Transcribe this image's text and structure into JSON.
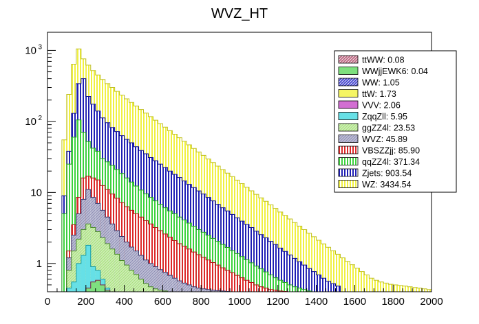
{
  "chart_data": {
    "type": "stacked-histogram",
    "title": "WVZ_HT",
    "xlabel": "",
    "ylabel": "",
    "xlim": [
      0,
      2000
    ],
    "y_scale": "log",
    "ylim": [
      0.4,
      1800
    ],
    "bin_width": 25,
    "x_ticks": [
      {
        "value": 0,
        "label": "0"
      },
      {
        "value": 200,
        "label": "200"
      },
      {
        "value": 400,
        "label": "400"
      },
      {
        "value": 600,
        "label": "600"
      },
      {
        "value": 800,
        "label": "800"
      },
      {
        "value": 1000,
        "label": "1000"
      },
      {
        "value": 1200,
        "label": "1200"
      },
      {
        "value": 1400,
        "label": "1400"
      },
      {
        "value": 1600,
        "label": "1600"
      },
      {
        "value": 1800,
        "label": "1800"
      },
      {
        "value": 2000,
        "label": "2000"
      }
    ],
    "y_ticks": [
      {
        "value": 1,
        "label": "1"
      },
      {
        "value": 10,
        "label": "10"
      },
      {
        "value": 100,
        "label": "10",
        "exp": "2"
      },
      {
        "value": 1000,
        "label": "10",
        "exp": "3"
      }
    ],
    "legend": {
      "placement": "top-right",
      "entries": [
        {
          "label": "ttWW: 0.08",
          "fill": "#b4506e",
          "pattern": "diag-dense"
        },
        {
          "label": "WWjjEWK6: 0.04",
          "fill": "#7ee07e",
          "pattern": "solid"
        },
        {
          "label": "WW: 1.05",
          "fill": "#2c2cc8",
          "pattern": "diag-dense"
        },
        {
          "label": "ttW: 1.73",
          "fill": "#f5f564",
          "pattern": "solid"
        },
        {
          "label": "VVV: 2.06",
          "fill": "#d26ed2",
          "pattern": "solid"
        },
        {
          "label": "ZqqZll: 5.95",
          "fill": "#66e0e6",
          "pattern": "solid"
        },
        {
          "label": "ggZZ4l: 23.53",
          "fill": "#a6e07a",
          "pattern": "diag"
        },
        {
          "label": "WVZ: 45.89",
          "fill": "#8c8cb4",
          "pattern": "diag"
        },
        {
          "label": "VBSZZjj: 85.90",
          "fill": "#dc2828",
          "pattern": "vertical"
        },
        {
          "label": "qqZZ4l: 371.34",
          "fill": "#3cd23c",
          "pattern": "vertical"
        },
        {
          "label": "Zjets: 903.54",
          "fill": "#1e1eb4",
          "pattern": "vertical"
        },
        {
          "label": "WZ: 3434.54",
          "fill": "#f0f040",
          "pattern": "vertical"
        }
      ]
    },
    "stack_totals": [
      {
        "process": "ttWW + WWjjEWK6 + WW + ttW + VVV",
        "x": [
          200,
          225,
          250,
          275,
          300
        ],
        "values": [
          0.45,
          0.55,
          0.58,
          0.5,
          0.42
        ]
      },
      {
        "process": "through ZqqZll",
        "x": [
          100,
          125,
          150,
          175,
          200,
          225,
          250,
          275,
          300
        ],
        "values": [
          0.45,
          0.55,
          1.0,
          1.3,
          1.8,
          0.9,
          0.8,
          0.6,
          0.45
        ]
      },
      {
        "process": "through ggZZ4l",
        "x": [
          100,
          125,
          150,
          175,
          200,
          225,
          250,
          275,
          300,
          325,
          350,
          375,
          400,
          425,
          450,
          475,
          500,
          525,
          550,
          575,
          600,
          625
        ],
        "values": [
          0.8,
          1.5,
          2.2,
          3.0,
          3.6,
          3.2,
          2.8,
          2.3,
          1.9,
          1.6,
          1.35,
          1.1,
          0.95,
          0.8,
          0.7,
          0.6,
          0.52,
          0.47,
          0.44,
          0.42,
          0.41,
          0.4
        ]
      },
      {
        "process": "through WVZ",
        "x": [
          100,
          125,
          150,
          175,
          200,
          225,
          250,
          275,
          300,
          325,
          350,
          375,
          400,
          425,
          450,
          475,
          500,
          525,
          550,
          575,
          600,
          625,
          650,
          675,
          700,
          725,
          750,
          775,
          800,
          825,
          850,
          875,
          900,
          925,
          950
        ],
        "values": [
          1.2,
          2.5,
          5.0,
          8.0,
          11.0,
          8.5,
          7.0,
          5.6,
          4.5,
          3.6,
          2.9,
          2.4,
          2.0,
          1.7,
          1.5,
          1.3,
          1.12,
          1.0,
          0.9,
          0.82,
          0.75,
          0.68,
          0.62,
          0.57,
          0.53,
          0.5,
          0.47,
          0.45,
          0.44,
          0.43,
          0.42,
          0.415,
          0.41,
          0.405,
          0.4
        ]
      },
      {
        "process": "through VBSZZjj",
        "x": [
          100,
          125,
          150,
          175,
          200,
          225,
          250,
          275,
          300,
          325,
          350,
          375,
          400,
          425,
          450,
          475,
          500,
          525,
          550,
          575,
          600,
          625,
          650,
          675,
          700,
          725,
          750,
          775,
          800,
          825,
          850,
          875,
          900,
          925,
          950,
          975,
          1000,
          1025,
          1050,
          1075,
          1100,
          1125,
          1150,
          1175,
          1200,
          1225,
          1250
        ],
        "values": [
          1.5,
          3.5,
          8.5,
          16.0,
          17.0,
          16.0,
          15.0,
          12.5,
          11.0,
          9.5,
          8.3,
          7.2,
          6.3,
          5.6,
          5.0,
          4.5,
          4.0,
          3.6,
          3.2,
          2.9,
          2.6,
          2.35,
          2.1,
          1.9,
          1.75,
          1.6,
          1.45,
          1.33,
          1.22,
          1.12,
          1.03,
          0.95,
          0.87,
          0.8,
          0.74,
          0.68,
          0.63,
          0.58,
          0.54,
          0.5,
          0.47,
          0.45,
          0.43,
          0.42,
          0.41,
          0.405,
          0.4
        ]
      },
      {
        "process": "through qqZZ4l",
        "x": [
          75,
          100,
          125,
          150,
          175,
          200,
          225,
          250,
          275,
          300,
          325,
          350,
          375,
          400,
          425,
          450,
          475,
          500,
          525,
          550,
          575,
          600,
          625,
          650,
          675,
          700,
          725,
          750,
          775,
          800,
          825,
          850,
          875,
          900,
          925,
          950,
          975,
          1000,
          1025,
          1050,
          1075,
          1100,
          1125,
          1150,
          1175,
          1200,
          1225,
          1250,
          1275,
          1300,
          1325,
          1350,
          1375
        ],
        "values": [
          5.0,
          25.0,
          60.0,
          105.0,
          70.0,
          52.0,
          42.0,
          38.0,
          30.0,
          27.0,
          24.0,
          21.0,
          18.5,
          16.0,
          14.0,
          12.3,
          10.8,
          9.6,
          8.5,
          7.6,
          6.8,
          6.1,
          5.5,
          5.0,
          4.5,
          4.1,
          3.7,
          3.35,
          3.0,
          2.75,
          2.5,
          2.25,
          2.05,
          1.85,
          1.68,
          1.52,
          1.38,
          1.25,
          1.13,
          1.02,
          0.92,
          0.84,
          0.76,
          0.69,
          0.63,
          0.58,
          0.54,
          0.5,
          0.47,
          0.45,
          0.43,
          0.41,
          0.4
        ]
      },
      {
        "process": "through Zjets",
        "x": [
          75,
          100,
          125,
          150,
          175,
          200,
          225,
          250,
          275,
          300,
          325,
          350,
          375,
          400,
          425,
          450,
          475,
          500,
          525,
          550,
          575,
          600,
          625,
          650,
          675,
          700,
          725,
          750,
          775,
          800,
          825,
          850,
          875,
          900,
          925,
          950,
          975,
          1000,
          1025,
          1050,
          1075,
          1100,
          1125,
          1150,
          1175,
          1200,
          1225,
          1250,
          1275,
          1300,
          1325,
          1350,
          1375,
          1400,
          1425,
          1450,
          1475,
          1500
        ],
        "values": [
          9.0,
          38.0,
          130.0,
          340.0,
          400.0,
          225.0,
          175.0,
          140.0,
          112.0,
          96.0,
          82.0,
          72.0,
          63.0,
          56.0,
          50.0,
          44.0,
          39.0,
          35.0,
          31.0,
          28.0,
          25.0,
          22.5,
          20.0,
          18.0,
          16.2,
          14.5,
          13.0,
          11.7,
          10.5,
          9.5,
          8.5,
          7.6,
          6.8,
          6.1,
          5.5,
          4.9,
          4.4,
          3.95,
          3.55,
          3.2,
          2.85,
          2.55,
          2.3,
          2.05,
          1.85,
          1.65,
          1.48,
          1.32,
          1.18,
          1.06,
          0.95,
          0.85,
          0.77,
          0.69,
          0.62,
          0.56,
          0.52,
          0.48
        ]
      },
      {
        "process": "through WZ (total)",
        "x": [
          75,
          100,
          125,
          150,
          175,
          200,
          225,
          250,
          275,
          300,
          325,
          350,
          375,
          400,
          425,
          450,
          475,
          500,
          525,
          550,
          575,
          600,
          625,
          650,
          675,
          700,
          725,
          750,
          775,
          800,
          825,
          850,
          875,
          900,
          925,
          950,
          975,
          1000,
          1025,
          1050,
          1075,
          1100,
          1125,
          1150,
          1175,
          1200,
          1225,
          1250,
          1275,
          1300,
          1325,
          1350,
          1375,
          1400,
          1425,
          1450,
          1475,
          1500,
          1525,
          1550,
          1575,
          1600,
          1625,
          1650,
          1675,
          1700,
          1725,
          1750,
          1775,
          1800,
          1825,
          1850,
          1875,
          1900,
          1925,
          1950,
          1975
        ],
        "values": [
          55.0,
          240.0,
          640.0,
          1050.0,
          760.0,
          620.0,
          520.0,
          450.0,
          390.0,
          340.0,
          300.0,
          265.0,
          235.0,
          208.0,
          185.0,
          165.0,
          147.0,
          131.0,
          117.0,
          104.0,
          93.0,
          83.0,
          74.0,
          66.0,
          59.0,
          52.5,
          46.8,
          41.7,
          37.2,
          33.2,
          29.6,
          26.4,
          23.5,
          21.0,
          18.7,
          16.7,
          14.9,
          13.3,
          11.85,
          10.55,
          9.4,
          8.4,
          7.5,
          6.7,
          5.95,
          5.3,
          4.75,
          4.23,
          3.77,
          3.36,
          3.0,
          2.67,
          2.38,
          2.12,
          1.89,
          1.69,
          1.51,
          1.35,
          1.2,
          1.07,
          0.96,
          0.86,
          0.77,
          0.69,
          0.62,
          0.58,
          0.55,
          0.53,
          0.51,
          0.5,
          0.49,
          0.48,
          0.47,
          0.46,
          0.45,
          0.44,
          0.43
        ]
      }
    ]
  }
}
